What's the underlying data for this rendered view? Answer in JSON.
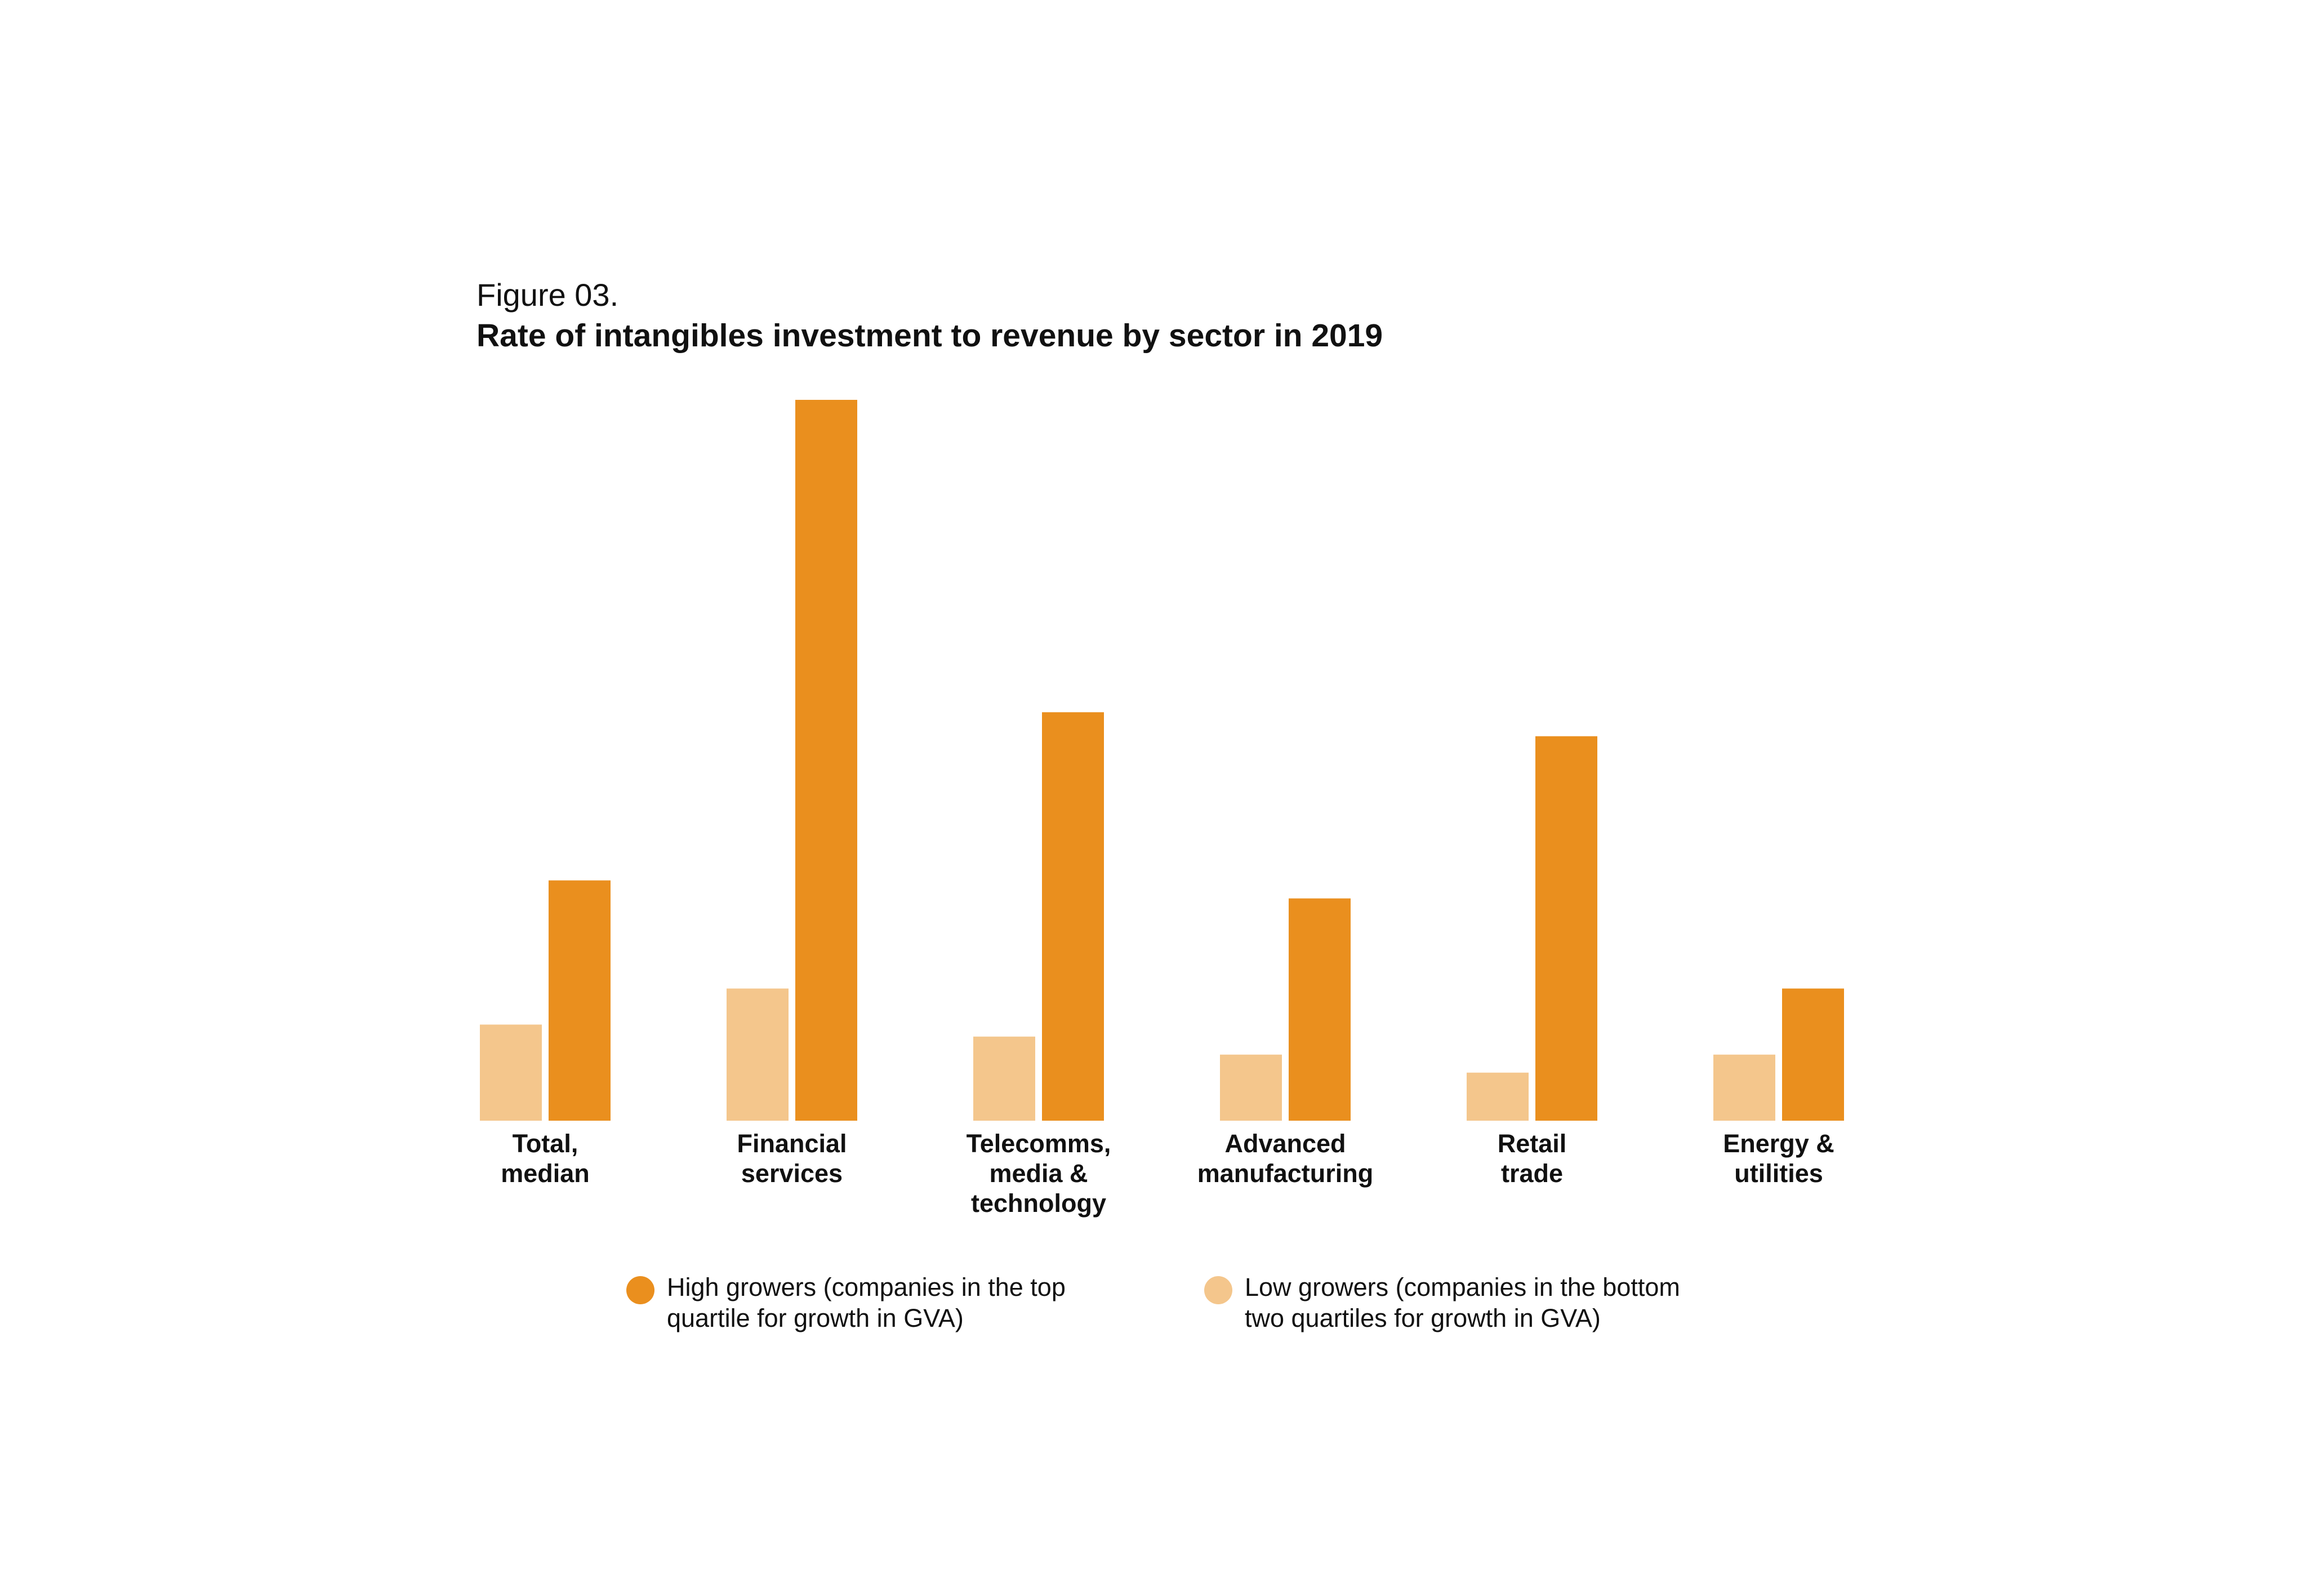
{
  "figure_label": "Figure 03.",
  "figure_title": "Rate of intangibles investment to revenue by sector in 2019",
  "colors": {
    "high": "#EA8F1E",
    "low": "#F4C68C"
  },
  "legend": {
    "high": "High growers (companies in the top\nquartile for growth in GVA)",
    "low": "Low growers (companies in the bottom\ntwo quartiles for growth in GVA)"
  },
  "chart_data": {
    "type": "bar",
    "title": "Rate of intangibles investment to revenue by sector in 2019",
    "categories": [
      [
        "Total,",
        "median"
      ],
      [
        "Financial",
        "services"
      ],
      [
        "Telecomms,",
        "media &",
        "technology"
      ],
      [
        "Advanced",
        "manufacturing"
      ],
      [
        "Retail",
        "trade"
      ],
      [
        "Energy &",
        "utilities"
      ]
    ],
    "series": [
      {
        "name": "Low growers (companies in the bottom two quartiles for growth in GVA)",
        "key": "low",
        "values": [
          16,
          22,
          14,
          11,
          8,
          11
        ]
      },
      {
        "name": "High growers (companies in the top quartile for growth in GVA)",
        "key": "high",
        "values": [
          40,
          120,
          68,
          37,
          64,
          22
        ]
      }
    ],
    "ylim": [
      0,
      120
    ],
    "axis_values_shown": false,
    "grid": false,
    "legend_position": "bottom"
  }
}
